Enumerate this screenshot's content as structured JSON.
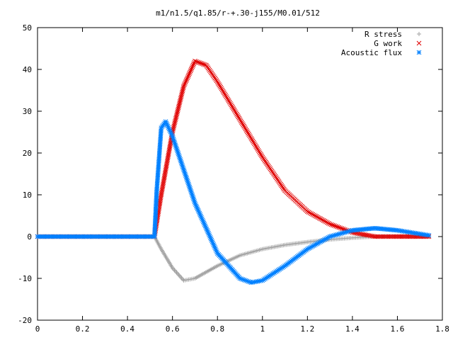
{
  "chart_data": {
    "type": "scatter",
    "title": "m1/n1.5/q1.85/r-+.30-j155/M0.01/512",
    "xlabel": "",
    "ylabel": "",
    "xlim": [
      0,
      1.8
    ],
    "ylim": [
      -20,
      50
    ],
    "xticks": [
      "0",
      "0.2",
      "0.4",
      "0.6",
      "0.8",
      "1",
      "1.2",
      "1.4",
      "1.6",
      "1.8"
    ],
    "yticks": [
      "-20",
      "-10",
      "0",
      "10",
      "20",
      "30",
      "40",
      "50"
    ],
    "grid": false,
    "legend_position": "top-right",
    "series": [
      {
        "name": "R stress",
        "marker": "+",
        "color": "#a0a0a0",
        "x": [
          0.0,
          0.52,
          0.55,
          0.6,
          0.65,
          0.7,
          0.8,
          0.9,
          1.0,
          1.1,
          1.2,
          1.3,
          1.4,
          1.5,
          1.6,
          1.7,
          1.74
        ],
        "y": [
          0,
          0,
          -3,
          -7.5,
          -10.5,
          -10,
          -7,
          -4.5,
          -3,
          -2,
          -1.3,
          -0.7,
          -0.3,
          0,
          0.1,
          0.1,
          0
        ]
      },
      {
        "name": "G work",
        "marker": "x",
        "color": "#e00000",
        "x": [
          0.0,
          0.52,
          0.55,
          0.6,
          0.65,
          0.7,
          0.75,
          0.8,
          0.9,
          1.0,
          1.1,
          1.2,
          1.3,
          1.4,
          1.5,
          1.6,
          1.74
        ],
        "y": [
          0,
          0,
          10,
          25,
          36,
          42,
          41,
          37,
          28,
          19,
          11,
          6,
          3,
          1,
          0,
          0,
          0
        ]
      },
      {
        "name": "Acoustic flux",
        "marker": "*",
        "color": "#0080ff",
        "x": [
          0.0,
          0.52,
          0.53,
          0.55,
          0.57,
          0.6,
          0.65,
          0.7,
          0.8,
          0.9,
          0.95,
          1.0,
          1.1,
          1.2,
          1.3,
          1.4,
          1.5,
          1.6,
          1.74
        ],
        "y": [
          0,
          0,
          11,
          26,
          27.5,
          24,
          16,
          8,
          -4,
          -10,
          -11,
          -10.5,
          -7,
          -3,
          0,
          1.5,
          2,
          1.5,
          0.3
        ]
      }
    ]
  }
}
